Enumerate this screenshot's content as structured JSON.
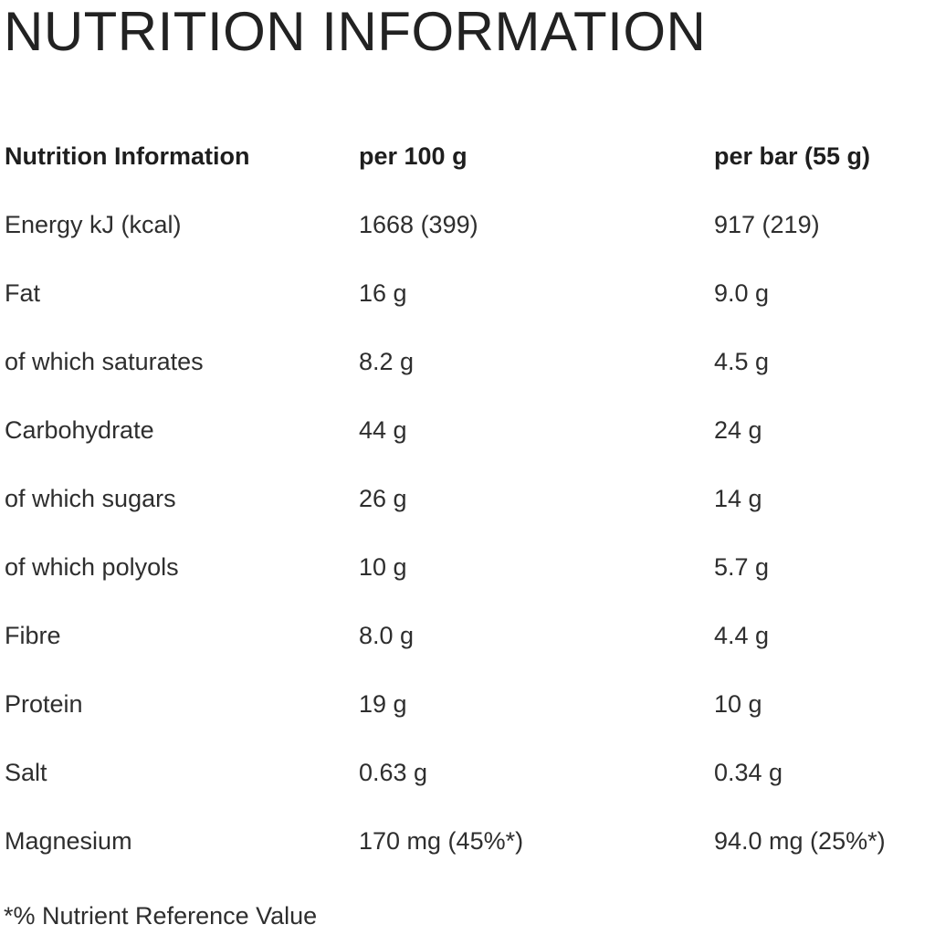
{
  "title": "NUTRITION INFORMATION",
  "table": {
    "headers": [
      "Nutrition Information",
      "per 100 g",
      "per bar (55 g)"
    ],
    "rows": [
      [
        "Energy kJ (kcal)",
        "1668 (399)",
        "917 (219)"
      ],
      [
        "Fat",
        "16 g",
        "9.0 g"
      ],
      [
        "of which saturates",
        "8.2 g",
        "4.5 g"
      ],
      [
        "Carbohydrate",
        "44 g",
        "24 g"
      ],
      [
        "of which sugars",
        "26 g",
        "14 g"
      ],
      [
        "of which polyols",
        "10 g",
        "5.7 g"
      ],
      [
        "Fibre",
        "8.0 g",
        "4.4 g"
      ],
      [
        "Protein",
        "19 g",
        "10 g"
      ],
      [
        "Salt",
        "0.63 g",
        "0.34 g"
      ],
      [
        "Magnesium",
        "170 mg (45%*)",
        "94.0 mg (25%*)"
      ]
    ]
  },
  "footnote": "*% Nutrient Reference Value"
}
